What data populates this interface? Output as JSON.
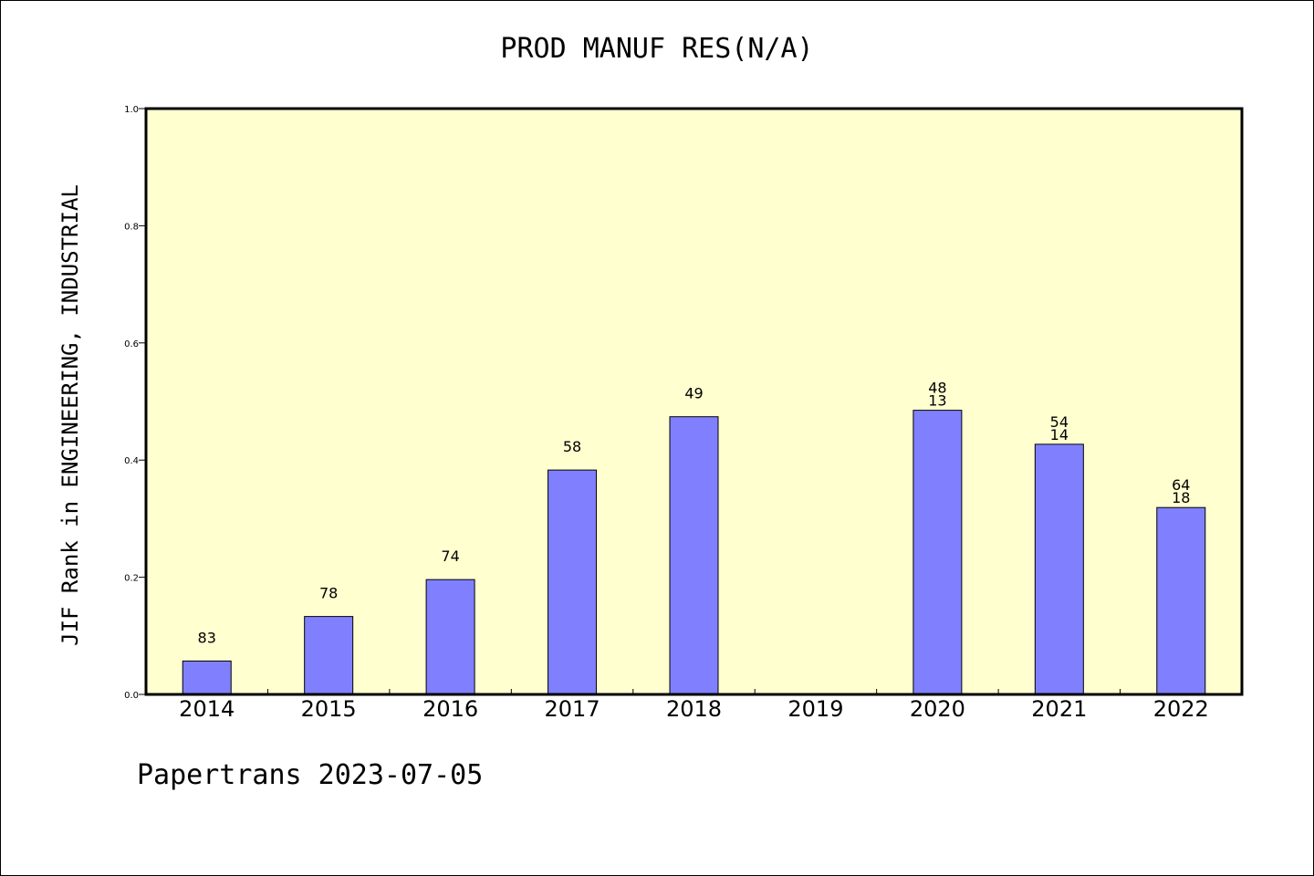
{
  "title": "PROD MANUF RES(N/A)",
  "footer": "Papertrans 2023-07-05",
  "colors": {
    "plot_bg": "#ffffd0",
    "bar": "#8080ff",
    "axis": "#000000"
  },
  "chart_data": {
    "type": "bar",
    "title": "PROD MANUF RES(N/A)",
    "xlabel": "",
    "ylabel": "JIF Rank in ENGINEERING, INDUSTRIAL",
    "ylim": [
      0,
      1.0
    ],
    "yticks": [
      "0.0",
      "0.2",
      "0.4",
      "0.6",
      "0.8",
      "1.0"
    ],
    "grid": false,
    "categories": [
      "2014",
      "2015",
      "2016",
      "2017",
      "2018",
      "2019",
      "2020",
      "2021",
      "2022"
    ],
    "values": [
      0.057,
      0.133,
      0.196,
      0.383,
      0.474,
      null,
      0.485,
      0.427,
      0.319
    ],
    "labels": [
      [
        "83"
      ],
      [
        "78"
      ],
      [
        "74"
      ],
      [
        "58"
      ],
      [
        "49"
      ],
      [],
      [
        "48",
        "13"
      ],
      [
        "54",
        "14"
      ],
      [
        "64",
        "18"
      ]
    ]
  }
}
